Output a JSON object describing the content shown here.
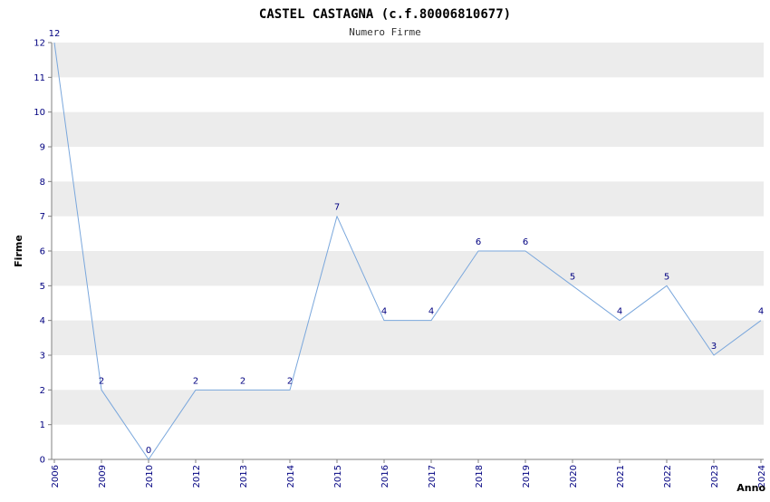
{
  "page": {
    "background": "#ffffff"
  },
  "chart_data": {
    "type": "line",
    "title": "CASTEL CASTAGNA (c.f.80006810677)",
    "subtitle": "Numero Firme",
    "xlabel": "Anno",
    "ylabel": "Firme",
    "categories": [
      "2006",
      "2009",
      "2010",
      "2012",
      "2013",
      "2014",
      "2015",
      "2016",
      "2017",
      "2018",
      "2019",
      "2020",
      "2021",
      "2022",
      "2023",
      "2024"
    ],
    "values": [
      12,
      2,
      0,
      2,
      2,
      2,
      7,
      4,
      4,
      6,
      6,
      5,
      4,
      5,
      3,
      4
    ],
    "ylim": [
      0,
      12
    ],
    "ytick_step": 1,
    "grid": "horizontal-alternating-bands",
    "legend": "none",
    "point_labels_visible": true,
    "x_tick_rotation_deg": -90,
    "colors": {
      "line": "#7aa7dc",
      "tick_label": "#000080",
      "point_label": "#000080",
      "band": "#ececec",
      "axis": "#808080",
      "title": "#000000",
      "subtitle": "#333333"
    }
  }
}
